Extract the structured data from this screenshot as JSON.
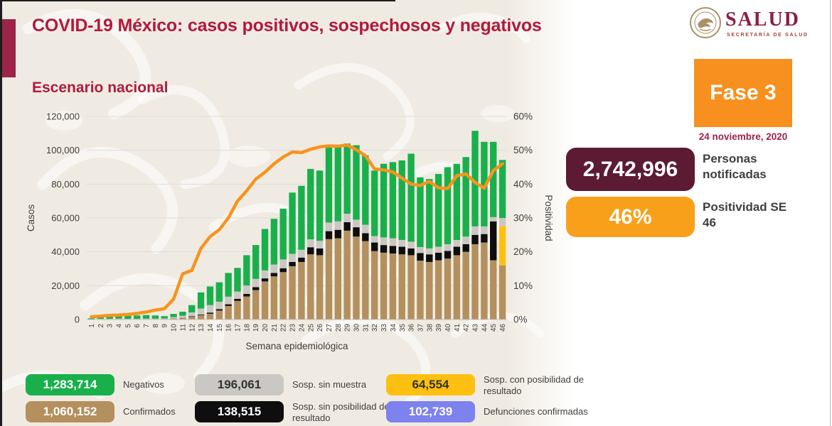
{
  "header": {
    "title": "COVID-19 México: casos positivos, sospechosos y negativos",
    "subtitle": "Escenario nacional"
  },
  "logo": {
    "wordmark": "SALUD",
    "subtext": "SECRETARÍA DE SALUD"
  },
  "phase": {
    "label": "Fase 3",
    "date": "24 noviembre, 2020"
  },
  "stats": [
    {
      "value": "2,742,996",
      "label": "Personas notificadas",
      "color": "#5c1b33",
      "text_color": "#ffffff"
    },
    {
      "value": "46%",
      "label": "Positividad SE 46",
      "color": "#f9a01b",
      "text_color": "#ffffff"
    }
  ],
  "legend": [
    {
      "value": "1,283,714",
      "label": "Negativos",
      "color": "#19b04c",
      "text_color": "#ffffff"
    },
    {
      "value": "196,061",
      "label": "Sosp. sin muestra",
      "color": "#cac8c4",
      "text_color": "#333333"
    },
    {
      "value": "64,554",
      "label": "Sosp. con posibilidad de resultado",
      "color": "#fdc010",
      "text_color": "#333333"
    },
    {
      "value": "1,060,152",
      "label": "Confirmados",
      "color": "#b3905d",
      "text_color": "#ffffff"
    },
    {
      "value": "138,515",
      "label": "Sosp. sin posibilidad de resultado",
      "color": "#0e0e0e",
      "text_color": "#ffffff"
    },
    {
      "value": "102,739",
      "label": "Defunciones confirmadas",
      "color": "#7d82ee",
      "text_color": "#ffffff"
    }
  ],
  "chart_data": {
    "type": "stacked-bar+line",
    "title": "Escenario nacional",
    "xlabel": "Semana epidemiológica",
    "ylabel_left": "Casos",
    "ylabel_right": "Positividad",
    "ylim_left": [
      0,
      120000
    ],
    "ylim_right": [
      0,
      60
    ],
    "ytick_step_left": 20000,
    "ytick_step_right": 10,
    "grid": true,
    "categories": [
      1,
      2,
      3,
      4,
      5,
      6,
      7,
      8,
      9,
      10,
      11,
      12,
      13,
      14,
      15,
      16,
      17,
      18,
      19,
      20,
      21,
      22,
      23,
      24,
      25,
      26,
      27,
      28,
      29,
      30,
      31,
      32,
      33,
      34,
      35,
      36,
      37,
      38,
      39,
      40,
      41,
      42,
      43,
      44,
      45,
      46
    ],
    "series": [
      {
        "name": "Confirmados",
        "color": "#b3905d",
        "values": [
          50,
          80,
          80,
          100,
          100,
          100,
          150,
          150,
          200,
          450,
          800,
          1600,
          2500,
          3400,
          5300,
          8000,
          11000,
          13600,
          17400,
          22500,
          25500,
          28000,
          31500,
          34000,
          38500,
          38000,
          47500,
          48000,
          52500,
          49000,
          46300,
          40400,
          39500,
          39000,
          38500,
          38000,
          34800,
          34000,
          35000,
          36000,
          38000,
          40000,
          44500,
          45500,
          35000,
          32000
        ]
      },
      {
        "name": "Sosp. sin posibilidad de resultado",
        "color": "#0e0e0e",
        "values": [
          0,
          0,
          0,
          0,
          0,
          0,
          0,
          0,
          50,
          100,
          150,
          300,
          400,
          700,
          800,
          1000,
          1200,
          1500,
          1700,
          1800,
          2000,
          2300,
          2500,
          2600,
          4200,
          4000,
          4700,
          5000,
          5000,
          5500,
          4700,
          5100,
          4500,
          4500,
          4500,
          4000,
          4500,
          4500,
          4500,
          4500,
          5000,
          4500,
          5500,
          5000,
          23000,
          0
        ]
      },
      {
        "name": "Sosp. con posibilidad de resultado",
        "color": "#fdc010",
        "values": [
          0,
          0,
          0,
          0,
          0,
          0,
          0,
          0,
          0,
          0,
          0,
          0,
          0,
          0,
          0,
          0,
          0,
          0,
          0,
          0,
          0,
          0,
          0,
          0,
          0,
          0,
          0,
          0,
          0,
          0,
          0,
          0,
          0,
          0,
          0,
          0,
          0,
          0,
          0,
          0,
          0,
          0,
          0,
          0,
          0,
          23300
        ]
      },
      {
        "name": "Sosp. sin muestra",
        "color": "#cac8c4",
        "values": [
          150,
          320,
          320,
          400,
          300,
          300,
          350,
          350,
          350,
          850,
          1250,
          2300,
          3600,
          4400,
          4400,
          4500,
          4300,
          5000,
          4900,
          4700,
          5000,
          5200,
          4800,
          4600,
          4700,
          4500,
          5100,
          5000,
          5000,
          4500,
          5000,
          3800,
          4500,
          4500,
          4000,
          4000,
          3500,
          3500,
          3500,
          4000,
          4000,
          4500,
          5000,
          4500,
          2500,
          4700
        ]
      },
      {
        "name": "Negativos",
        "color": "#19b04c",
        "values": [
          500,
          2200,
          2300,
          2500,
          2200,
          2000,
          2100,
          1900,
          1400,
          1900,
          2400,
          4300,
          9500,
          11000,
          11500,
          14000,
          14000,
          17900,
          20000,
          24500,
          27000,
          30000,
          36200,
          37800,
          41600,
          41500,
          45700,
          44000,
          41500,
          44000,
          41000,
          38700,
          43500,
          45000,
          47000,
          52000,
          41200,
          41000,
          43000,
          45500,
          45000,
          47000,
          56500,
          50000,
          44500,
          34300
        ]
      }
    ],
    "line": {
      "name": "Positividad (%)",
      "color": "#f7941d",
      "values": [
        0.8,
        1,
        1.2,
        1.3,
        1.5,
        1.8,
        2.2,
        2.8,
        3.2,
        6,
        13.5,
        14.5,
        21,
        24.5,
        26.5,
        30,
        35,
        38,
        41.5,
        43.5,
        46,
        48,
        49.5,
        49.3,
        50.3,
        51,
        51.3,
        51.2,
        51.5,
        50.2,
        48.4,
        44.5,
        44.2,
        43.6,
        41.8,
        40,
        39.6,
        40.8,
        38.9,
        38.7,
        42.5,
        43,
        40.5,
        38.8,
        44,
        46
      ]
    }
  }
}
